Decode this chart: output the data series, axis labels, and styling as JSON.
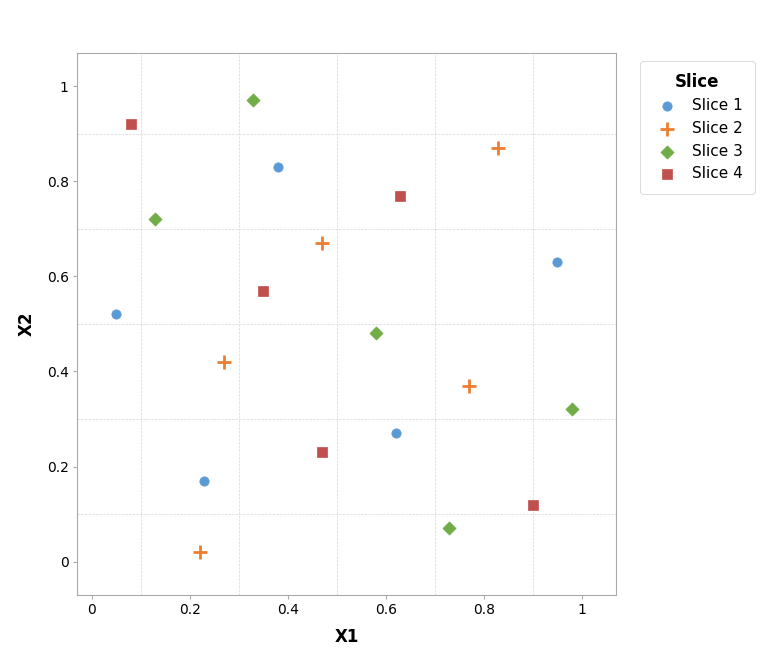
{
  "title": "",
  "xlabel": "X1",
  "ylabel": "X2",
  "xlim": [
    -0.03,
    1.07
  ],
  "ylim": [
    -0.07,
    1.07
  ],
  "xticks": [
    0,
    0.2,
    0.4,
    0.6,
    0.8,
    1.0
  ],
  "yticks": [
    0,
    0.2,
    0.4,
    0.6,
    0.8,
    1.0
  ],
  "xtick_labels": [
    "0",
    "0.2",
    "0.4",
    "0.6",
    "0.8",
    "1"
  ],
  "ytick_labels": [
    "0",
    "0.2",
    "0.4",
    "0.6",
    "0.8",
    "1"
  ],
  "legend_title": "Slice",
  "slices": {
    "Slice 1": {
      "color": "#5B9BD5",
      "marker": "o",
      "points": [
        [
          0.05,
          0.52
        ],
        [
          0.23,
          0.17
        ],
        [
          0.38,
          0.83
        ],
        [
          0.62,
          0.27
        ],
        [
          0.95,
          0.63
        ]
      ]
    },
    "Slice 2": {
      "color": "#ED7D31",
      "marker": "+",
      "points": [
        [
          0.22,
          0.02
        ],
        [
          0.27,
          0.42
        ],
        [
          0.47,
          0.67
        ],
        [
          0.77,
          0.37
        ],
        [
          0.83,
          0.87
        ]
      ]
    },
    "Slice 3": {
      "color": "#70AD47",
      "marker": "D",
      "points": [
        [
          0.13,
          0.72
        ],
        [
          0.33,
          0.97
        ],
        [
          0.58,
          0.48
        ],
        [
          0.73,
          0.07
        ],
        [
          0.98,
          0.32
        ]
      ]
    },
    "Slice 4": {
      "color": "#C0504D",
      "marker": "s",
      "points": [
        [
          0.08,
          0.92
        ],
        [
          0.35,
          0.57
        ],
        [
          0.47,
          0.23
        ],
        [
          0.63,
          0.77
        ],
        [
          0.9,
          0.12
        ]
      ]
    }
  },
  "background_color": "#FFFFFF",
  "plot_bg_color": "#FFFFFF",
  "grid_color": "#CCCCCC",
  "spine_color": "#AAAAAA",
  "figsize": [
    7.7,
    6.61
  ],
  "dpi": 100,
  "marker_size": 45,
  "plus_size": 100,
  "tick_fontsize": 10,
  "label_fontsize": 12,
  "legend_fontsize": 11,
  "legend_title_fontsize": 12
}
